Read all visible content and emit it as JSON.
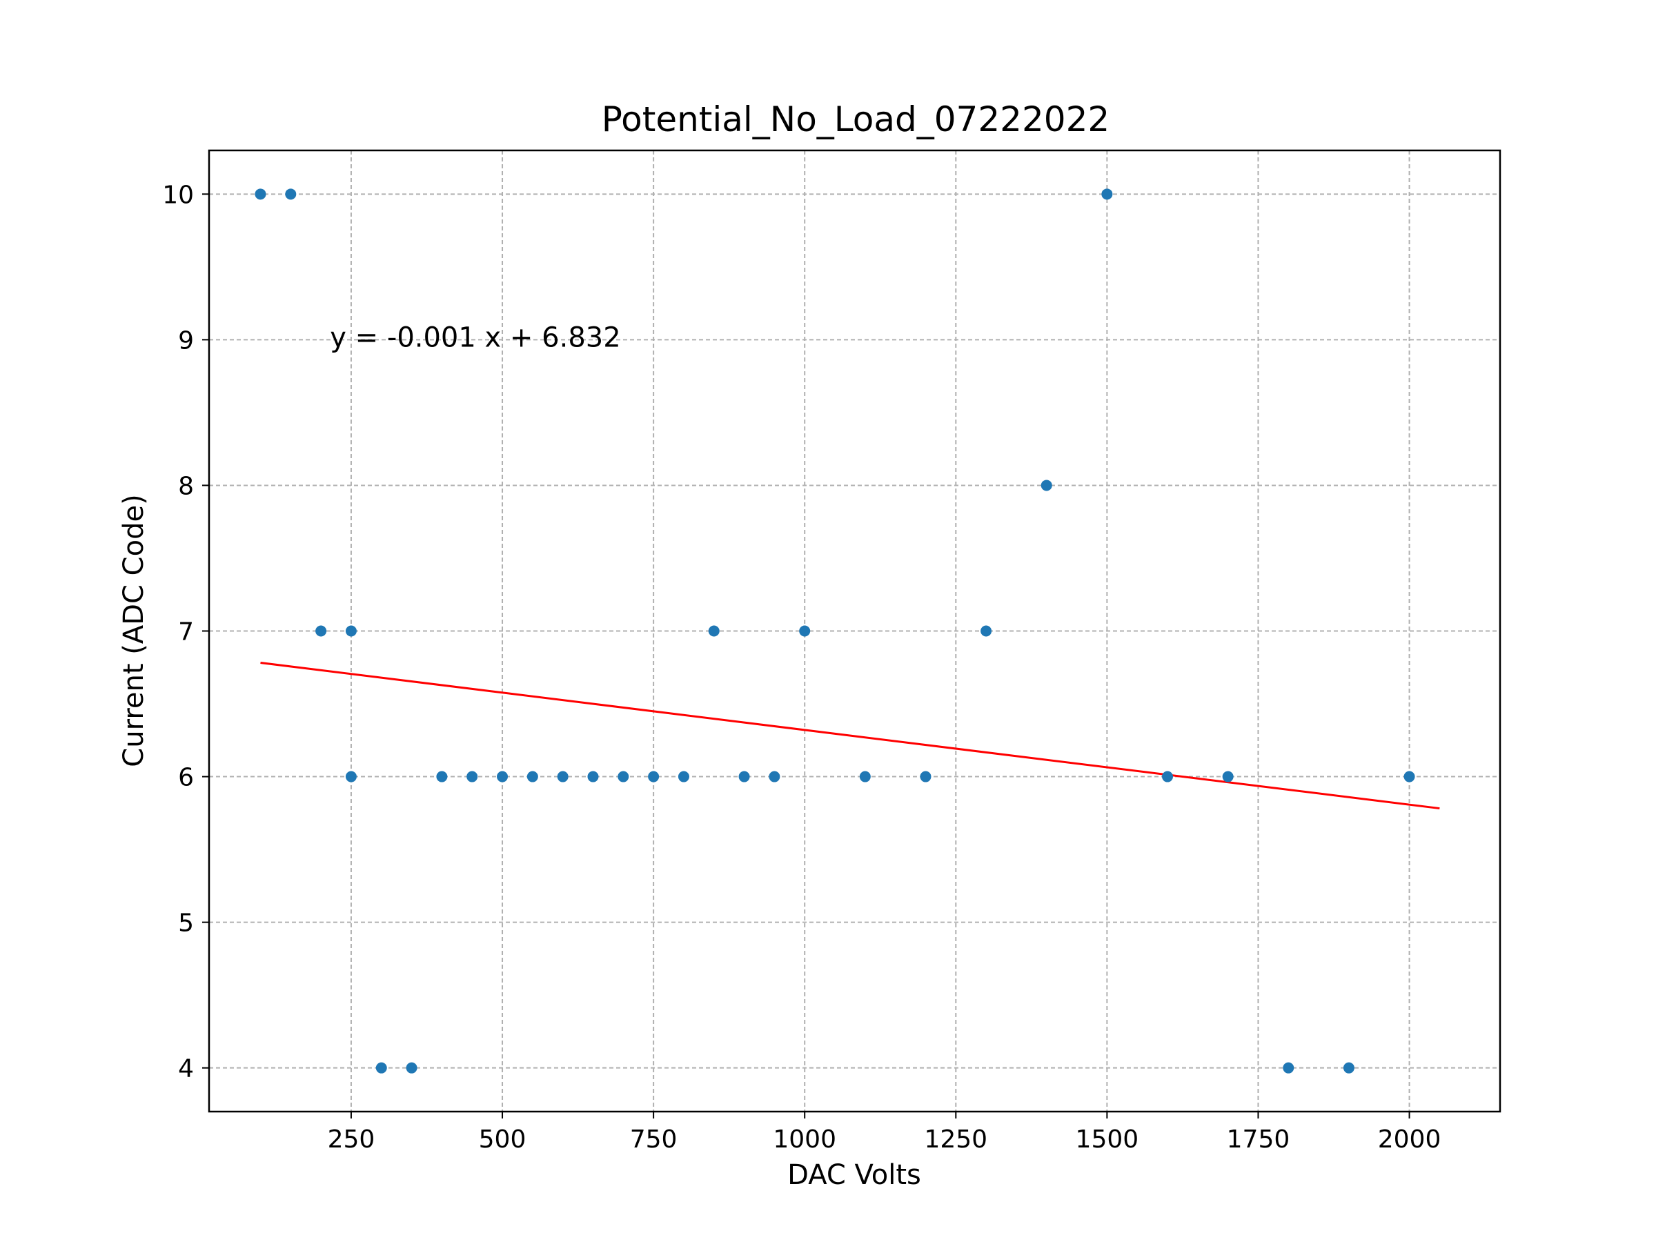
{
  "chart_data": {
    "type": "scatter",
    "title": "Potential_No_Load_07222022",
    "xlabel": "DAC Volts",
    "ylabel": "Current (ADC Code)",
    "xlim": [
      15,
      2150
    ],
    "ylim": [
      3.7,
      10.3
    ],
    "xticks": [
      250,
      500,
      750,
      1000,
      1250,
      1500,
      1750,
      2000
    ],
    "yticks": [
      4,
      5,
      6,
      7,
      8,
      9,
      10
    ],
    "grid": true,
    "point_color": "#1f77b4",
    "line_color": "#ff0000",
    "points": [
      {
        "x": 100,
        "y": 10
      },
      {
        "x": 150,
        "y": 10
      },
      {
        "x": 200,
        "y": 7
      },
      {
        "x": 250,
        "y": 7
      },
      {
        "x": 250,
        "y": 6
      },
      {
        "x": 300,
        "y": 4
      },
      {
        "x": 350,
        "y": 4
      },
      {
        "x": 400,
        "y": 6
      },
      {
        "x": 450,
        "y": 6
      },
      {
        "x": 500,
        "y": 6
      },
      {
        "x": 550,
        "y": 6
      },
      {
        "x": 600,
        "y": 6
      },
      {
        "x": 650,
        "y": 6
      },
      {
        "x": 700,
        "y": 6
      },
      {
        "x": 750,
        "y": 6
      },
      {
        "x": 800,
        "y": 6
      },
      {
        "x": 850,
        "y": 7
      },
      {
        "x": 900,
        "y": 6
      },
      {
        "x": 950,
        "y": 6
      },
      {
        "x": 1000,
        "y": 7
      },
      {
        "x": 1100,
        "y": 6
      },
      {
        "x": 1200,
        "y": 6
      },
      {
        "x": 1300,
        "y": 7
      },
      {
        "x": 1400,
        "y": 8
      },
      {
        "x": 1500,
        "y": 10
      },
      {
        "x": 1600,
        "y": 6
      },
      {
        "x": 1700,
        "y": 6
      },
      {
        "x": 1800,
        "y": 4
      },
      {
        "x": 1900,
        "y": 4
      },
      {
        "x": 2000,
        "y": 6
      }
    ],
    "fit_line": {
      "x": [
        100,
        2050
      ],
      "y": [
        6.782,
        5.782
      ]
    },
    "annotation": {
      "text": "y = -0.001 x + 6.832",
      "x": 215,
      "y": 9.0
    }
  }
}
